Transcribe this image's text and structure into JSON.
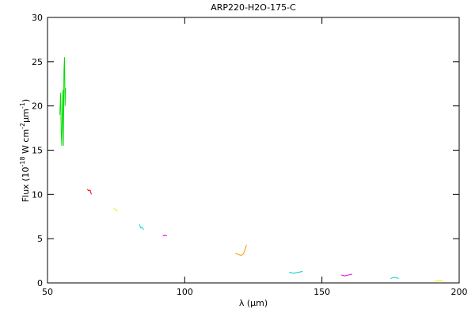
{
  "chart_data": {
    "type": "line",
    "title": "ARP220-H2O-175-C",
    "xlabel": "λ (μm)",
    "ylabel": [
      "Flux (10",
      "-18",
      " W cm",
      "-2",
      "μm",
      "-1",
      ")"
    ],
    "xlim": [
      50,
      200
    ],
    "xticks": [
      50,
      100,
      150,
      200
    ],
    "ylim": [
      0,
      30
    ],
    "yticks": [
      0,
      5,
      10,
      15,
      20,
      25,
      30
    ],
    "grid": false,
    "series": [
      {
        "color": "#00dd00",
        "x": [
          54.5,
          54.8,
          55,
          55.2,
          55.4,
          55.6,
          55.8,
          56,
          56.2,
          56.4,
          56.6
        ],
        "values": [
          19,
          21.5,
          17,
          15.5,
          19,
          21.8,
          15.5,
          24,
          25.5,
          20,
          22
        ]
      },
      {
        "color": "#ee0000",
        "x": [
          64.5,
          65,
          65.5,
          66
        ],
        "values": [
          10.6,
          10.4,
          10.5,
          10.0
        ]
      },
      {
        "color": "#eeee00",
        "x": [
          74,
          74.8,
          75.5
        ],
        "values": [
          8.4,
          8.3,
          8.1
        ]
      },
      {
        "color": "#00dddd",
        "x": [
          83.5,
          84,
          84.5,
          85
        ],
        "values": [
          6.6,
          6.2,
          6.3,
          6.0
        ]
      },
      {
        "color": "#ee00ee",
        "x": [
          92,
          92.5,
          93,
          93.5
        ],
        "values": [
          5.4,
          5.3,
          5.4,
          5.3
        ]
      },
      {
        "color": "#ee9900",
        "x": [
          118.5,
          119.5,
          120.5,
          121.2,
          121.8,
          122.5
        ],
        "values": [
          3.4,
          3.2,
          3.1,
          3.2,
          3.6,
          4.3
        ]
      },
      {
        "color": "#00cccc",
        "x": [
          138,
          139.7,
          141.3,
          143
        ],
        "values": [
          1.2,
          1.1,
          1.2,
          1.3
        ]
      },
      {
        "color": "#dd00dd",
        "x": [
          157,
          158.3,
          159.7,
          161
        ],
        "values": [
          0.9,
          0.8,
          0.9,
          1.0
        ]
      },
      {
        "color": "#00cccc",
        "x": [
          175,
          176,
          177,
          178
        ],
        "values": [
          0.5,
          0.6,
          0.6,
          0.5
        ]
      },
      {
        "color": "#eeee00",
        "x": [
          191,
          192,
          193,
          194
        ],
        "values": [
          0.2,
          0.2,
          0.3,
          0.2
        ]
      }
    ]
  }
}
